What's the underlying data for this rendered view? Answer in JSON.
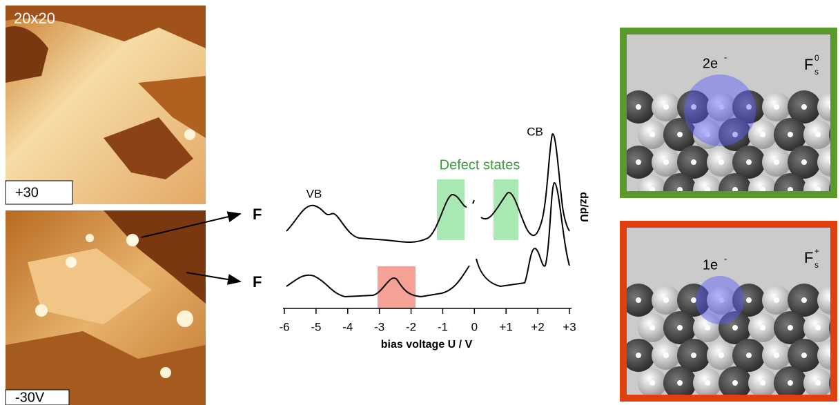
{
  "images": {
    "size_label": "20x20",
    "top_label": "+30",
    "bottom_label": "-30V"
  },
  "pointers": {
    "upper": "F",
    "lower": "F"
  },
  "spectra": {
    "peak_vb": "VB",
    "peak_cb": "CB",
    "defect_label": "Defect states",
    "xlabel": "bias voltage U / V",
    "ylabel": "dz/dU",
    "xlim": [
      -6,
      3
    ],
    "xticks": [
      -6,
      -5,
      -4,
      -3,
      -2,
      -1,
      0,
      {
        "value": 1,
        "label": "+1"
      },
      {
        "value": 2,
        "label": "+2"
      },
      {
        "value": 3,
        "label": "+3"
      }
    ]
  },
  "models": {
    "neutral": {
      "charge": "2e",
      "charge_sign": "-",
      "symbol": "F",
      "subscript": "s",
      "superscript": "0"
    },
    "charged": {
      "charge": "1e",
      "charge_sign": "-",
      "symbol": "F",
      "subscript": "s",
      "superscript": "+"
    }
  }
}
